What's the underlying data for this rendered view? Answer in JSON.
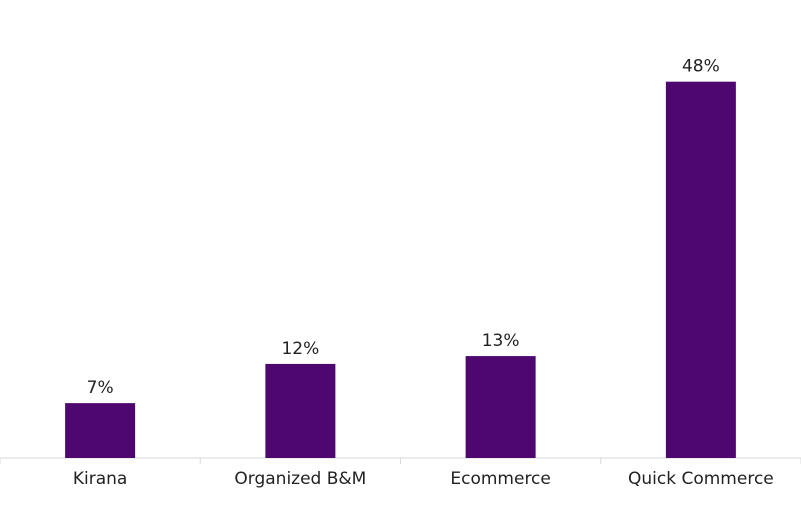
{
  "chart_data": {
    "type": "bar",
    "categories": [
      "Kirana",
      "Organized B&M",
      "Ecommerce",
      "Quick Commerce"
    ],
    "values": [
      7,
      12,
      13,
      48
    ],
    "value_labels": [
      "7%",
      "12%",
      "13%",
      "48%"
    ],
    "ylim": [
      0,
      50
    ],
    "grid": false,
    "legend": "none",
    "bar_color": "#4f0770",
    "axis_color": "#d9d9d9",
    "text_color": "#222222"
  }
}
